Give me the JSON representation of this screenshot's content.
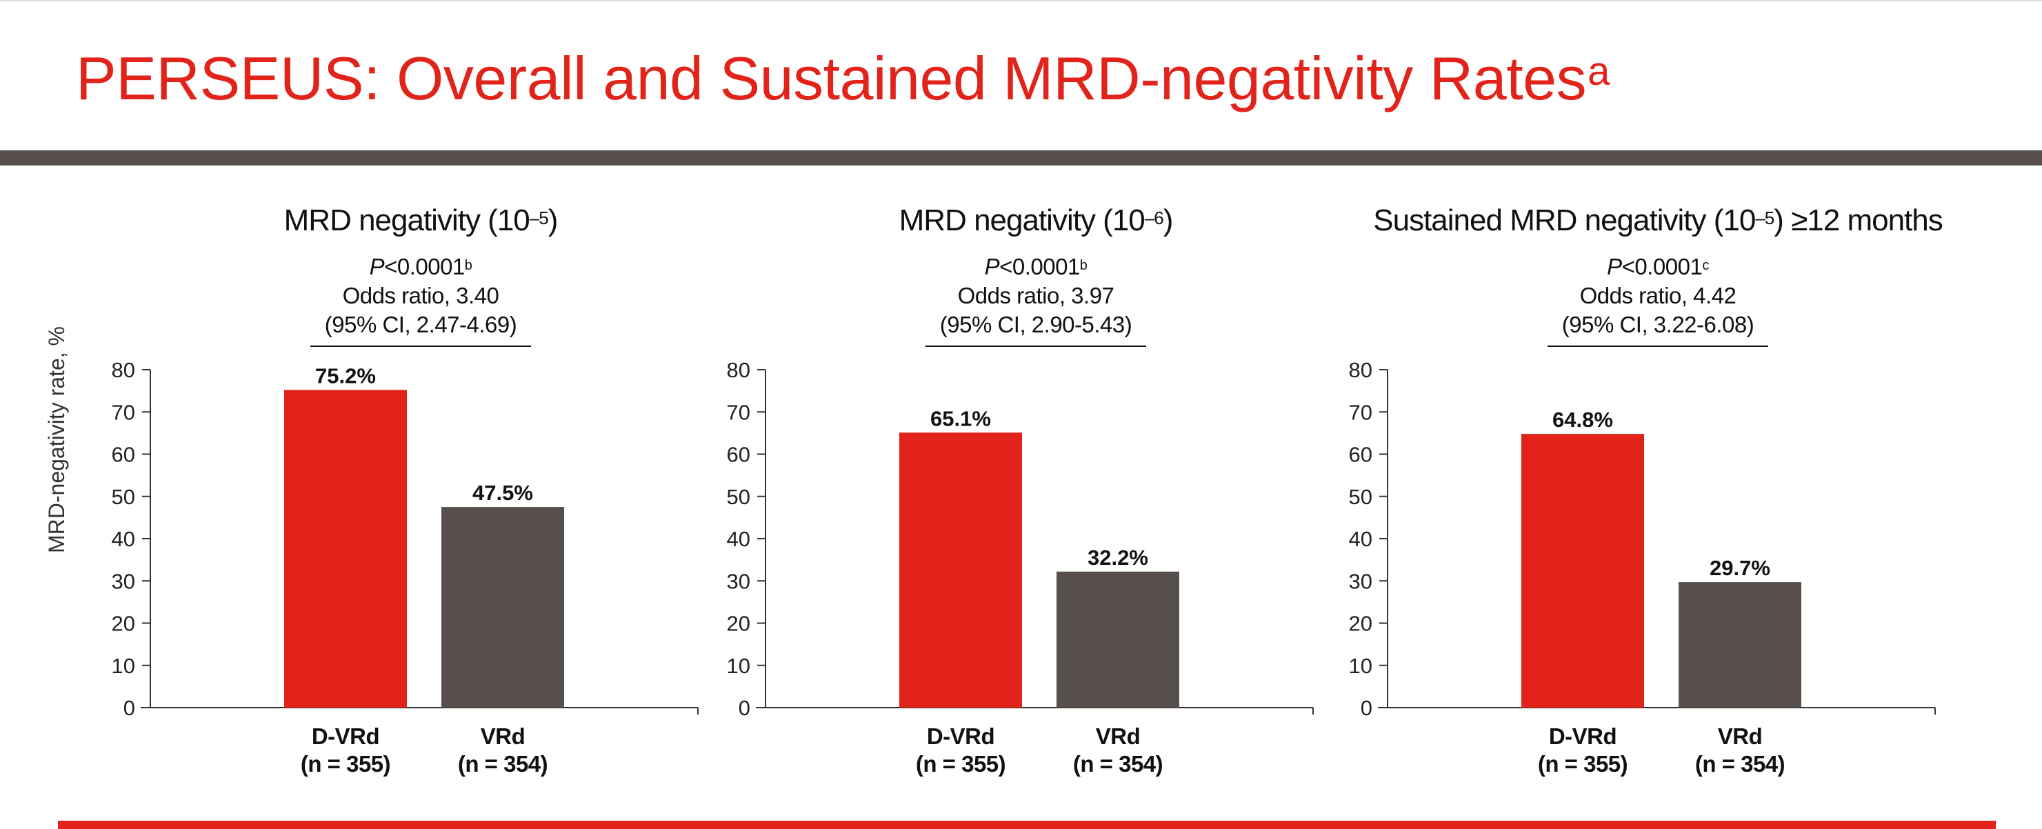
{
  "slide": {
    "title": "PERSEUS: Overall and Sustained MRD-negativity Rates",
    "title_superscript": "a",
    "accent_color": "#e2231a",
    "bar_dark_color": "#574f4b"
  },
  "y_axis_label": "MRD-negativity rate, %",
  "chart_data": [
    {
      "type": "bar",
      "title": "MRD negativity (10",
      "title_exp": "–5",
      "title_suffix": ")",
      "p_value": "<0.0001",
      "p_note": "b",
      "odds_ratio": "Odds ratio, 3.40",
      "ci": "(95% CI, 2.47-4.69)",
      "categories": [
        "D-VRd",
        "VRd"
      ],
      "category_n": [
        "(n = 355)",
        "(n = 354)"
      ],
      "values": [
        75.2,
        47.5
      ],
      "value_labels": [
        "75.2%",
        "47.5%"
      ],
      "colors": [
        "#e2231a",
        "#574f4b"
      ],
      "ylim": [
        0,
        80
      ],
      "yticks": [
        0,
        10,
        20,
        30,
        40,
        50,
        60,
        70,
        80
      ],
      "ylabel": "MRD-negativity rate, %",
      "grid": false
    },
    {
      "type": "bar",
      "title": "MRD negativity (10",
      "title_exp": "–6",
      "title_suffix": ")",
      "p_value": "<0.0001",
      "p_note": "b",
      "odds_ratio": "Odds ratio, 3.97",
      "ci": "(95% CI, 2.90-5.43)",
      "categories": [
        "D-VRd",
        "VRd"
      ],
      "category_n": [
        "(n = 355)",
        "(n = 354)"
      ],
      "values": [
        65.1,
        32.2
      ],
      "value_labels": [
        "65.1%",
        "32.2%"
      ],
      "colors": [
        "#e2231a",
        "#574f4b"
      ],
      "ylim": [
        0,
        80
      ],
      "yticks": [
        0,
        10,
        20,
        30,
        40,
        50,
        60,
        70,
        80
      ],
      "ylabel": "",
      "grid": false
    },
    {
      "type": "bar",
      "title": "Sustained MRD negativity (10",
      "title_exp": "–5",
      "title_suffix": ") ≥12 months",
      "p_value": "<0.0001",
      "p_note": "c",
      "odds_ratio": "Odds ratio, 4.42",
      "ci": "(95% CI, 3.22-6.08)",
      "categories": [
        "D-VRd",
        "VRd"
      ],
      "category_n": [
        "(n = 355)",
        "(n = 354)"
      ],
      "values": [
        64.8,
        29.7
      ],
      "value_labels": [
        "64.8%",
        "29.7%"
      ],
      "colors": [
        "#e2231a",
        "#574f4b"
      ],
      "ylim": [
        0,
        80
      ],
      "yticks": [
        0,
        10,
        20,
        30,
        40,
        50,
        60,
        70,
        80
      ],
      "ylabel": "",
      "grid": false
    }
  ]
}
